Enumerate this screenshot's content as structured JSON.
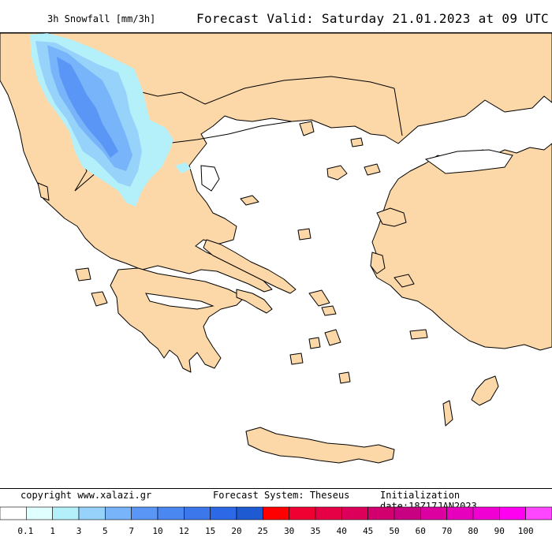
{
  "header": {
    "variable_label": "3h Snowfall [mm/3h]",
    "forecast_valid": "Forecast Valid:  Saturday 21.01.2023 at 09 UTC"
  },
  "footer": {
    "copyright": "copyright www.xalazi.gr",
    "system": "Forecast System: Theseus",
    "init": "Initialization date:18Z17JAN2023"
  },
  "legend": {
    "colors": [
      "#ffffff",
      "#e0ffff",
      "#b4f0fa",
      "#96d2fa",
      "#78b4fa",
      "#5a96f5",
      "#4b87f0",
      "#3c78eb",
      "#2d69e6",
      "#1e5ad2",
      "#ff0000",
      "#f00032",
      "#e60046",
      "#dc005a",
      "#d2006e",
      "#c80082",
      "#dc00a0",
      "#e600be",
      "#f000d2",
      "#ff00f0",
      "#ff46ff"
    ],
    "tick_labels": [
      "0.1",
      "1",
      "3",
      "5",
      "7",
      "10",
      "12",
      "15",
      "20",
      "25",
      "30",
      "35",
      "40",
      "45",
      "50",
      "60",
      "70",
      "80",
      "90",
      "100"
    ]
  },
  "map_colors": {
    "land": "#fcd8a8",
    "sea": "#ffffff",
    "snow_light": "#b4f0fa",
    "snow_mid": "#96d2fa",
    "snow_heavy": "#78b4fa",
    "snow_max": "#5a96f5"
  }
}
